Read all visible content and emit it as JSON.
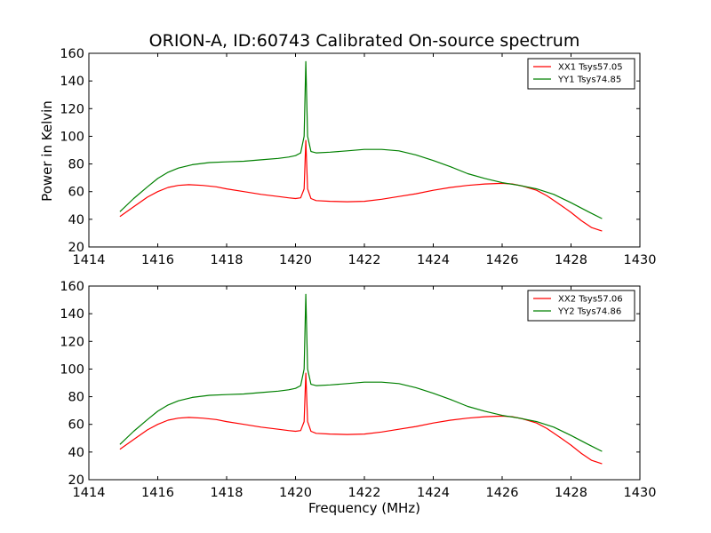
{
  "title": "ORION-A, ID:60743 Calibrated On-source spectrum",
  "ylabel": "Power in Kelvin",
  "xlabel": "Frequency (MHz)",
  "chart_data": [
    {
      "type": "line",
      "xlim": [
        1414,
        1430
      ],
      "ylim": [
        20,
        160
      ],
      "x_ticks": [
        1414,
        1416,
        1418,
        1420,
        1422,
        1424,
        1426,
        1428,
        1430
      ],
      "y_ticks": [
        20,
        40,
        60,
        80,
        100,
        120,
        140,
        160
      ],
      "legend_position": "top-right",
      "grid": false,
      "series": [
        {
          "name": "XX1 Tsys57.05",
          "color": "#ff0000",
          "x": [
            1414.9,
            1415.3,
            1415.7,
            1416.0,
            1416.3,
            1416.6,
            1416.9,
            1417.3,
            1417.7,
            1418.0,
            1418.5,
            1419.0,
            1419.5,
            1419.8,
            1420.0,
            1420.15,
            1420.25,
            1420.3,
            1420.35,
            1420.45,
            1420.6,
            1421.0,
            1421.5,
            1422.0,
            1422.5,
            1423.0,
            1423.5,
            1424.0,
            1424.5,
            1425.0,
            1425.5,
            1426.0,
            1426.3,
            1426.6,
            1427.0,
            1427.3,
            1427.6,
            1428.0,
            1428.3,
            1428.6,
            1428.9
          ],
          "values": [
            42,
            49,
            56,
            60,
            63,
            64.5,
            65,
            64.5,
            63.5,
            62,
            60,
            58,
            56.5,
            55.5,
            55,
            55.5,
            62,
            97,
            62,
            55,
            53.5,
            53,
            52.7,
            53,
            54.5,
            56.5,
            58.5,
            61,
            63,
            64.5,
            65.5,
            66,
            65.5,
            64,
            61,
            57,
            52,
            45,
            39,
            34,
            31.5
          ]
        },
        {
          "name": "YY1 Tsys74.85",
          "color": "#008000",
          "x": [
            1414.9,
            1415.3,
            1415.7,
            1416.0,
            1416.3,
            1416.6,
            1417.0,
            1417.5,
            1418.0,
            1418.5,
            1419.0,
            1419.5,
            1419.8,
            1420.0,
            1420.15,
            1420.25,
            1420.3,
            1420.35,
            1420.45,
            1420.6,
            1421.0,
            1421.5,
            1422.0,
            1422.5,
            1423.0,
            1423.5,
            1424.0,
            1424.5,
            1425.0,
            1425.5,
            1426.0,
            1426.5,
            1427.0,
            1427.5,
            1428.0,
            1428.5,
            1428.9
          ],
          "values": [
            45.5,
            55,
            63.5,
            69.5,
            74,
            77,
            79.5,
            81,
            81.5,
            82,
            83,
            84,
            85,
            86,
            88,
            100,
            154,
            100,
            89,
            88,
            88.5,
            89.5,
            90.5,
            90.5,
            89.5,
            86.5,
            82.5,
            78,
            73,
            69.5,
            66.5,
            64.5,
            62,
            58,
            52,
            45.5,
            40.5
          ]
        }
      ]
    },
    {
      "type": "line",
      "xlim": [
        1414,
        1430
      ],
      "ylim": [
        20,
        160
      ],
      "x_ticks": [
        1414,
        1416,
        1418,
        1420,
        1422,
        1424,
        1426,
        1428,
        1430
      ],
      "y_ticks": [
        20,
        40,
        60,
        80,
        100,
        120,
        140,
        160
      ],
      "legend_position": "top-right",
      "grid": false,
      "series": [
        {
          "name": "XX2 Tsys57.06",
          "color": "#ff0000",
          "x": [
            1414.9,
            1415.3,
            1415.7,
            1416.0,
            1416.3,
            1416.6,
            1416.9,
            1417.3,
            1417.7,
            1418.0,
            1418.5,
            1419.0,
            1419.5,
            1419.8,
            1420.0,
            1420.15,
            1420.25,
            1420.3,
            1420.35,
            1420.45,
            1420.6,
            1421.0,
            1421.5,
            1422.0,
            1422.5,
            1423.0,
            1423.5,
            1424.0,
            1424.5,
            1425.0,
            1425.5,
            1426.0,
            1426.3,
            1426.6,
            1427.0,
            1427.3,
            1427.6,
            1428.0,
            1428.3,
            1428.6,
            1428.9
          ],
          "values": [
            42,
            49,
            56,
            60,
            63,
            64.5,
            65,
            64.5,
            63.5,
            62,
            60,
            58,
            56.5,
            55.5,
            55,
            55.5,
            62,
            97,
            62,
            55,
            53.5,
            53,
            52.7,
            53,
            54.5,
            56.5,
            58.5,
            61,
            63,
            64.5,
            65.5,
            66,
            65.5,
            64,
            61,
            57,
            52,
            45,
            39,
            34,
            31.5
          ]
        },
        {
          "name": "YY2 Tsys74.86",
          "color": "#008000",
          "x": [
            1414.9,
            1415.3,
            1415.7,
            1416.0,
            1416.3,
            1416.6,
            1417.0,
            1417.5,
            1418.0,
            1418.5,
            1419.0,
            1419.5,
            1419.8,
            1420.0,
            1420.15,
            1420.25,
            1420.3,
            1420.35,
            1420.45,
            1420.6,
            1421.0,
            1421.5,
            1422.0,
            1422.5,
            1423.0,
            1423.5,
            1424.0,
            1424.5,
            1425.0,
            1425.5,
            1426.0,
            1426.5,
            1427.0,
            1427.5,
            1428.0,
            1428.5,
            1428.9
          ],
          "values": [
            45.5,
            55,
            63.5,
            69.5,
            74,
            77,
            79.5,
            81,
            81.5,
            82,
            83,
            84,
            85,
            86,
            88,
            100,
            154,
            100,
            89,
            88,
            88.5,
            89.5,
            90.5,
            90.5,
            89.5,
            86.5,
            82.5,
            78,
            73,
            69.5,
            66.5,
            64.5,
            62,
            58,
            52,
            45.5,
            40.5
          ]
        }
      ]
    }
  ]
}
